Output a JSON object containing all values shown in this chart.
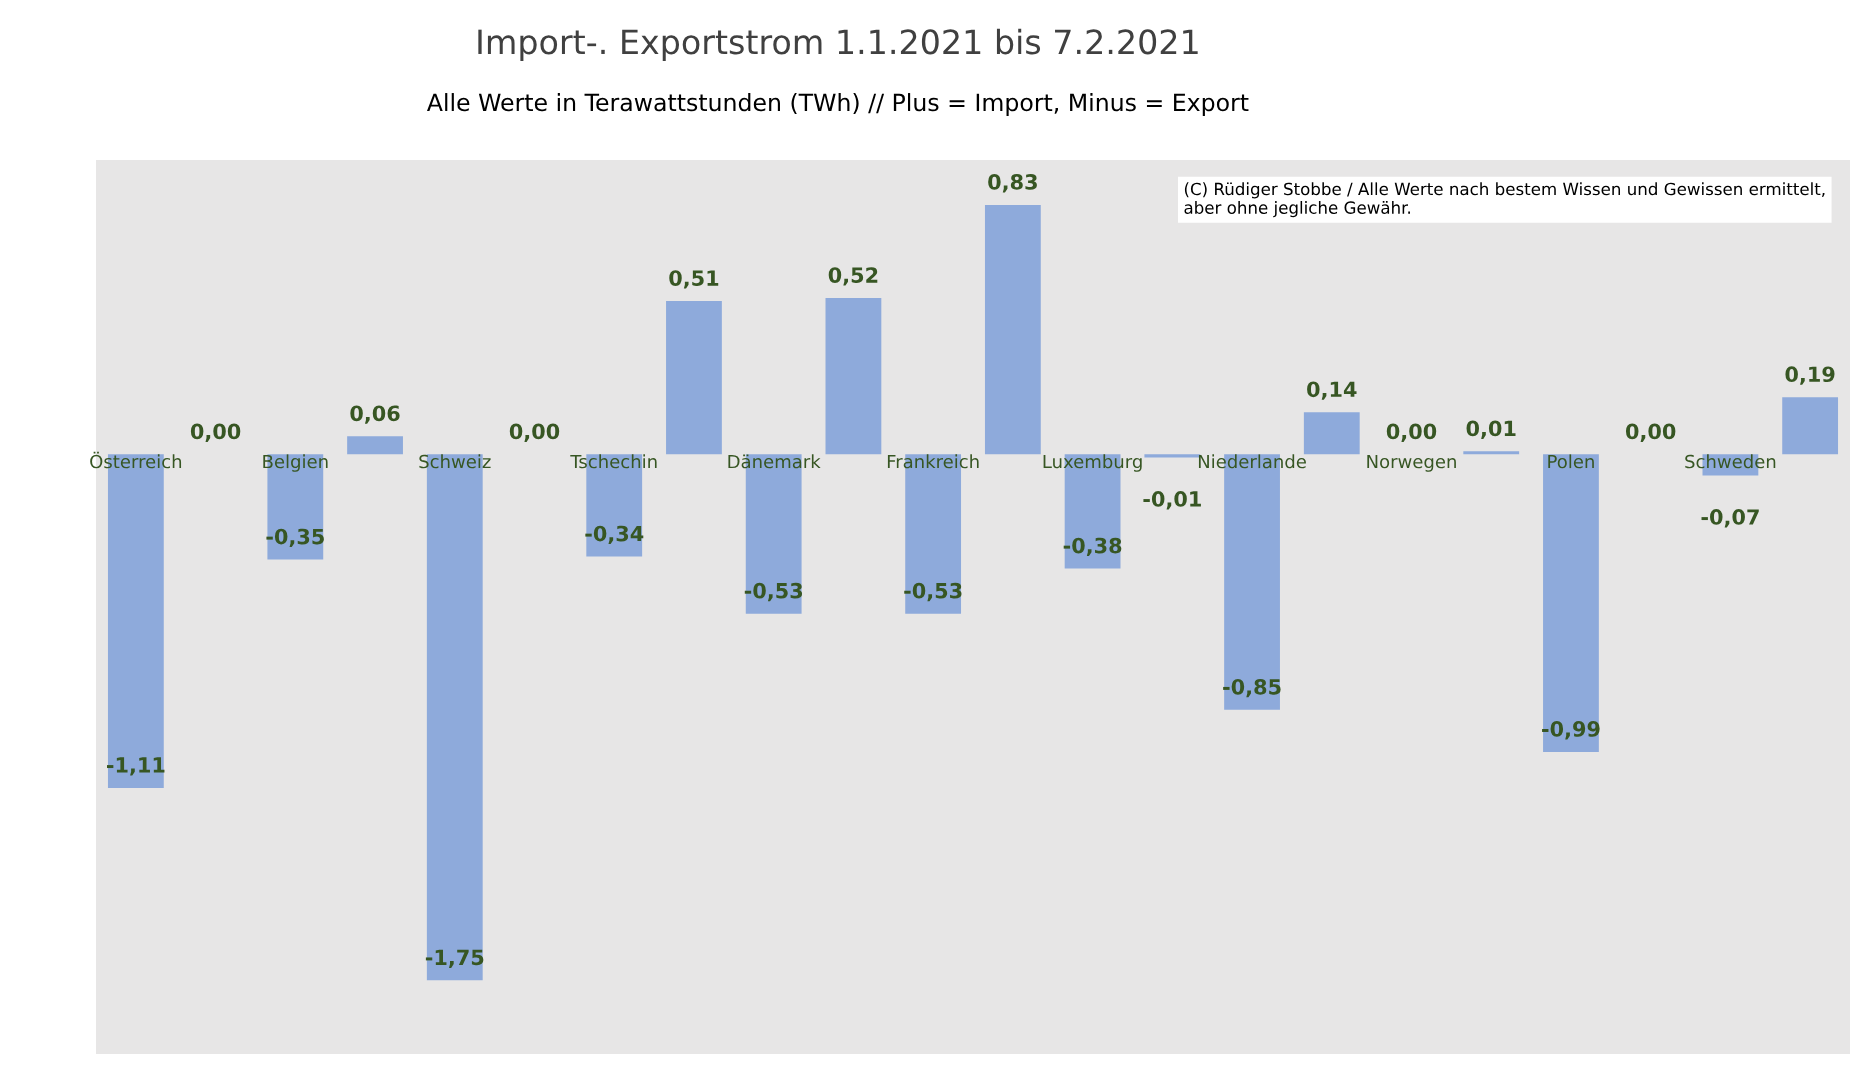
{
  "chart_data": {
    "type": "bar",
    "title": "Import-. Exportstrom 1.1.2021 bis 7.2.2021",
    "subtitle": "Alle Werte in Terawattstunden (TWh) // Plus = Import, Minus = Export",
    "annotations": [
      "(C) Rüdiger Stobbe / Alle Werte nach bestem Wissen und Gewissen ermittelt, aber ohne jegliche Gewähr."
    ],
    "categories": [
      "Österreich",
      null,
      "Belgien",
      null,
      "Schweiz",
      null,
      "Tschechin",
      null,
      "Dänemark",
      null,
      "Frankreich",
      null,
      "Luxemburg",
      null,
      "Niederlande",
      null,
      "Norwegen",
      null,
      "Polen",
      null,
      "Schweden",
      null
    ],
    "values": [
      -1.11,
      0.0,
      -0.35,
      0.06,
      -1.75,
      0.0,
      -0.34,
      0.51,
      -0.53,
      0.52,
      -0.53,
      0.83,
      -0.38,
      -0.01,
      -0.85,
      0.14,
      0.0,
      0.01,
      -0.99,
      0.0,
      -0.07,
      0.19
    ],
    "value_labels": [
      "-1,11",
      "0,00",
      "-0,35",
      "0,06",
      "-1,75",
      "0,00",
      "-0,34",
      "0,51",
      "-0,53",
      "0,52",
      "-0,53",
      "0,83",
      "-0,38",
      "-0,01",
      "-0,85",
      "0,14",
      "0,00",
      "0,01",
      "-0,99",
      "0,00",
      "-0,07",
      "0,19"
    ],
    "color": "#8eaadb"
  }
}
